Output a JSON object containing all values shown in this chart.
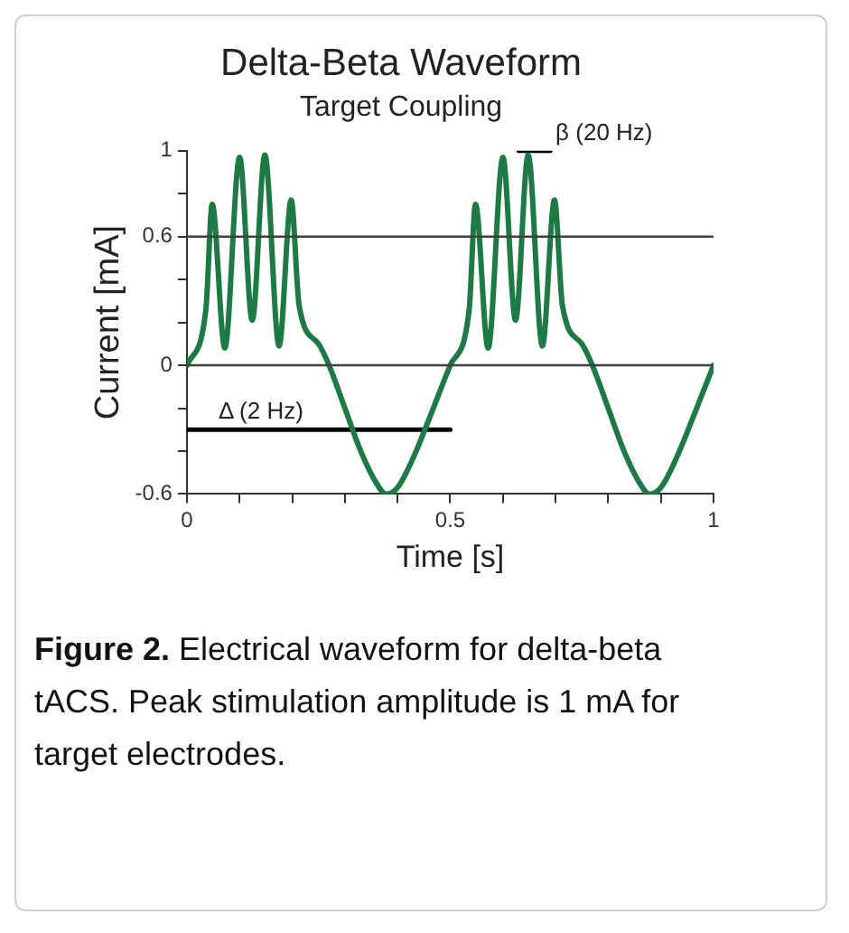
{
  "chart_data": {
    "type": "line",
    "title": "Delta-Beta Waveform",
    "subtitle": "Target Coupling",
    "xlabel": "Time [s]",
    "ylabel": "Current [mA]",
    "xlim": [
      0,
      1
    ],
    "ylim": [
      -0.6,
      1
    ],
    "xticks": [
      0,
      {
        "value": 0.1,
        "label": null
      },
      {
        "value": 0.2,
        "label": null
      },
      {
        "value": 0.3,
        "label": null
      },
      {
        "value": 0.4,
        "label": null
      },
      0.5,
      {
        "value": 0.6,
        "label": null
      },
      {
        "value": 0.7,
        "label": null
      },
      {
        "value": 0.8,
        "label": null
      },
      {
        "value": 0.9,
        "label": null
      },
      1
    ],
    "yticks": [
      -0.6,
      {
        "value": -0.4,
        "label": null
      },
      {
        "value": -0.2,
        "label": null
      },
      0,
      {
        "value": 0.2,
        "label": null
      },
      {
        "value": 0.4,
        "label": null
      },
      0.6,
      {
        "value": 0.8,
        "label": null
      },
      1
    ],
    "grid": false,
    "legend": false,
    "marker": "none",
    "line_style": "solid",
    "series": [
      {
        "color": "#1e7a45",
        "x": [
          0,
          0.036,
          0.048,
          0.072,
          0.1,
          0.124,
          0.148,
          0.175,
          0.198,
          0.213,
          0.25,
          0.27,
          0.3,
          0.33,
          0.36,
          0.378,
          0.4,
          0.43,
          0.46,
          0.5,
          0.536,
          0.548,
          0.572,
          0.6,
          0.624,
          0.648,
          0.675,
          0.698,
          0.713,
          0.75,
          0.77,
          0.8,
          0.83,
          0.86,
          0.878,
          0.9,
          0.93,
          0.96,
          1
        ],
        "values": [
          0,
          0.26,
          0.75,
          0.08,
          0.97,
          0.21,
          0.98,
          0.09,
          0.77,
          0.28,
          0.1,
          0,
          -0.2,
          -0.4,
          -0.55,
          -0.6,
          -0.57,
          -0.43,
          -0.25,
          0,
          0.26,
          0.75,
          0.08,
          0.97,
          0.21,
          0.98,
          0.09,
          0.77,
          0.28,
          0.1,
          0,
          -0.2,
          -0.4,
          -0.55,
          -0.6,
          -0.57,
          -0.43,
          -0.25,
          0
        ]
      },
      {
        "type": "line",
        "color": "#000000",
        "x": [
          0,
          0.5
        ],
        "values": [
          -0.3,
          -0.3
        ]
      },
      {
        "type": "line",
        "color": "#000000",
        "x": [
          0.63,
          0.69
        ],
        "values": [
          1,
          1
        ]
      }
    ],
    "ref_lines": [
      {
        "axis": "y",
        "value": 0.6,
        "color": "#404040"
      },
      {
        "axis": "y",
        "value": 0,
        "color": "#404040"
      }
    ],
    "annotations": [
      {
        "text": "Δ (2 Hz)",
        "x": 0.06,
        "y": -0.3
      },
      {
        "text": "β (20 Hz)",
        "x": 0.7,
        "y": 1
      },
      "Figure 2.",
      "Electrical waveform for delta-beta tACS. Peak stimulation amplitude is 1 mA for target electrodes."
    ]
  }
}
